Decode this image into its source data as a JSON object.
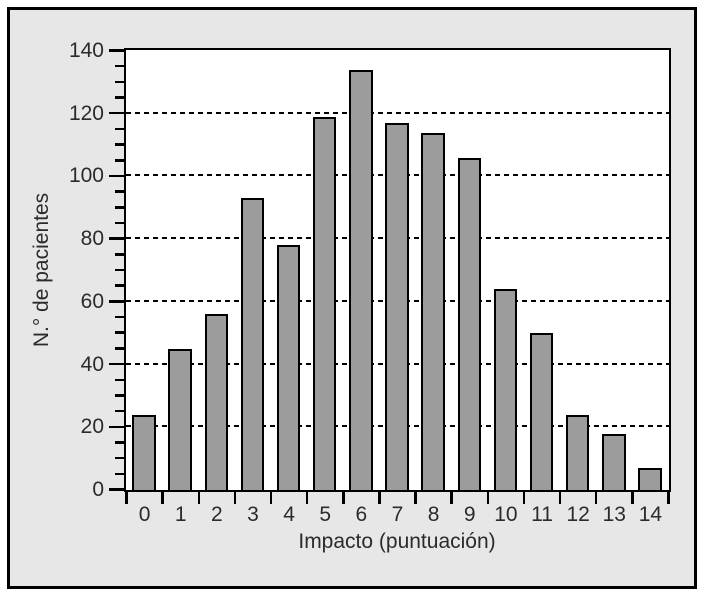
{
  "figure": {
    "frame_fill": "#e7e7e7",
    "frame_border": "#000000",
    "plot_background": "#ffffff",
    "axis_text_color": "#2b2b2b"
  },
  "chart_data": {
    "type": "bar",
    "title": "",
    "xlabel": "Impacto (puntuación)",
    "ylabel": "N.° de pacientes",
    "categories": [
      "0",
      "1",
      "2",
      "3",
      "4",
      "5",
      "6",
      "7",
      "8",
      "9",
      "10",
      "11",
      "12",
      "13",
      "14"
    ],
    "values": [
      24,
      45,
      56,
      93,
      78,
      119,
      134,
      117,
      114,
      106,
      64,
      50,
      24,
      18,
      7
    ],
    "ylim": [
      0,
      140
    ],
    "yticks": [
      0,
      20,
      40,
      60,
      80,
      100,
      120,
      140
    ],
    "y_minor_tick_step": 5,
    "grid": "horizontal dashed lines at major y ticks (20-120)",
    "legend": "none",
    "bar_fill": "#9c9c9c",
    "bar_stroke": "#000000"
  }
}
